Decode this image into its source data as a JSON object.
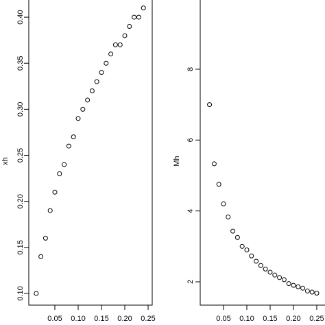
{
  "chart_data": [
    {
      "type": "scatter",
      "y_label": "xh",
      "x": [
        0.01,
        0.02,
        0.03,
        0.04,
        0.05,
        0.06,
        0.07,
        0.08,
        0.09,
        0.1,
        0.11,
        0.12,
        0.13,
        0.14,
        0.15,
        0.16,
        0.17,
        0.18,
        0.19,
        0.2,
        0.21,
        0.22,
        0.23,
        0.24
      ],
      "values": [
        0.1,
        0.14,
        0.16,
        0.19,
        0.21,
        0.23,
        0.24,
        0.26,
        0.27,
        0.29,
        0.3,
        0.31,
        0.32,
        0.33,
        0.34,
        0.35,
        0.36,
        0.37,
        0.37,
        0.38,
        0.39,
        0.4,
        0.4,
        0.41
      ],
      "color": "#000000",
      "xlim": [
        -0.0059,
        0.2588
      ],
      "ylim": [
        0.0873,
        0.4224
      ],
      "xticks": [
        0.05,
        {
          "value": 0.1,
          "label": "0.10"
        },
        0.15,
        {
          "value": 0.2,
          "label": "0.20"
        },
        0.25
      ],
      "yticks": [
        {
          "value": 0.1,
          "label": "0.10"
        },
        0.15,
        {
          "value": 0.2,
          "label": "0.20"
        },
        0.25,
        {
          "value": 0.3,
          "label": "0.30"
        },
        0.35,
        {
          "value": 0.4,
          "label": "0.40"
        }
      ]
    },
    {
      "type": "scatter",
      "y_label": "Mh",
      "x": [
        0.02,
        0.03,
        0.04,
        0.05,
        0.06,
        0.07,
        0.08,
        0.09,
        0.1,
        0.11,
        0.12,
        0.13,
        0.14,
        0.15,
        0.16,
        0.17,
        0.18,
        0.19,
        0.2,
        0.21,
        0.22,
        0.23,
        0.24,
        0.25
      ],
      "values": [
        7.0,
        5.33,
        4.75,
        4.2,
        3.83,
        3.43,
        3.25,
        3.0,
        2.9,
        2.73,
        2.58,
        2.46,
        2.36,
        2.27,
        2.19,
        2.12,
        2.06,
        1.95,
        1.9,
        1.86,
        1.82,
        1.74,
        1.71,
        1.68
      ],
      "color": "#000000",
      "xlim": [
        0.0,
        0.2765
      ],
      "ylim": [
        1.342,
        10.05
      ],
      "xticks": [
        0.05,
        {
          "value": 0.1,
          "label": "0.10"
        },
        0.15,
        {
          "value": 0.2,
          "label": "0.20"
        },
        0.25
      ],
      "yticks": [
        2,
        4,
        6,
        8
      ]
    }
  ]
}
